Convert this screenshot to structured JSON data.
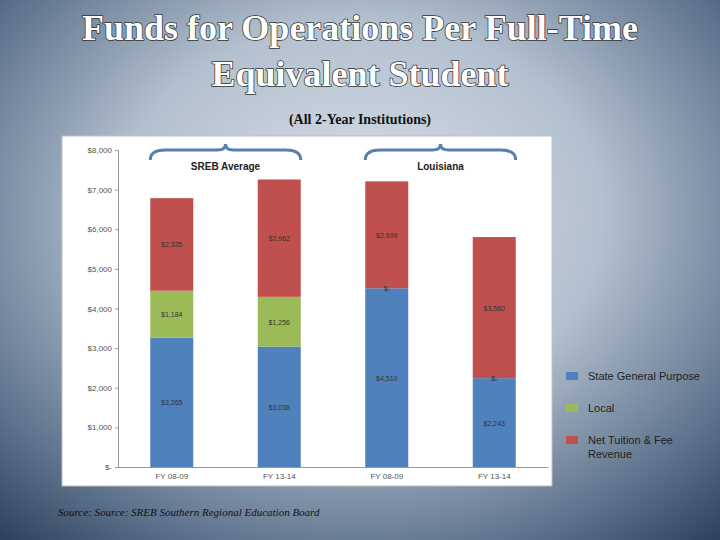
{
  "chart_data": {
    "type": "bar",
    "title": "Funds for Operations Per Full-Time Equivalent Student",
    "subtitle": "(All 2-Year Institutions)",
    "source": "Source: Source: SREB Southern Regional Education Board",
    "groups": [
      "SREB Average",
      "Louisiana"
    ],
    "categories": [
      "FY 08-09",
      "FY 13-14",
      "FY 08-09",
      "FY 13-14"
    ],
    "series": [
      {
        "name": "State General Purpose",
        "color": "#4f81bd",
        "values": [
          3265,
          3038,
          4510,
          2243
        ],
        "value_labels": [
          "$3,265",
          "$3,038",
          "$4,510",
          "$2,243"
        ]
      },
      {
        "name": "Local",
        "color": "#9bbb59",
        "values": [
          1184,
          1256,
          0,
          0
        ],
        "value_labels": [
          "$1,184",
          "$1,256",
          "$-",
          "$-"
        ]
      },
      {
        "name": "Net Tuition & Fee Revenue",
        "color": "#c0504d",
        "values": [
          2335,
          2962,
          2699,
          3560
        ],
        "value_labels": [
          "$2,335",
          "$2,962",
          "$2,699",
          "$3,560"
        ]
      }
    ],
    "ylim": [
      0,
      8000
    ],
    "yticks": [
      {
        "value": 0,
        "label": "$-"
      },
      {
        "value": 1000,
        "label": "$1,000"
      },
      {
        "value": 2000,
        "label": "$2,000"
      },
      {
        "value": 3000,
        "label": "$3,000"
      },
      {
        "value": 4000,
        "label": "$4,000"
      },
      {
        "value": 5000,
        "label": "$5,000"
      },
      {
        "value": 6000,
        "label": "$6,000"
      },
      {
        "value": 7000,
        "label": "$7,000"
      },
      {
        "value": 8000,
        "label": "$8,000"
      }
    ],
    "stacked": true,
    "data_labels": true,
    "grid": false,
    "legend": "right"
  }
}
